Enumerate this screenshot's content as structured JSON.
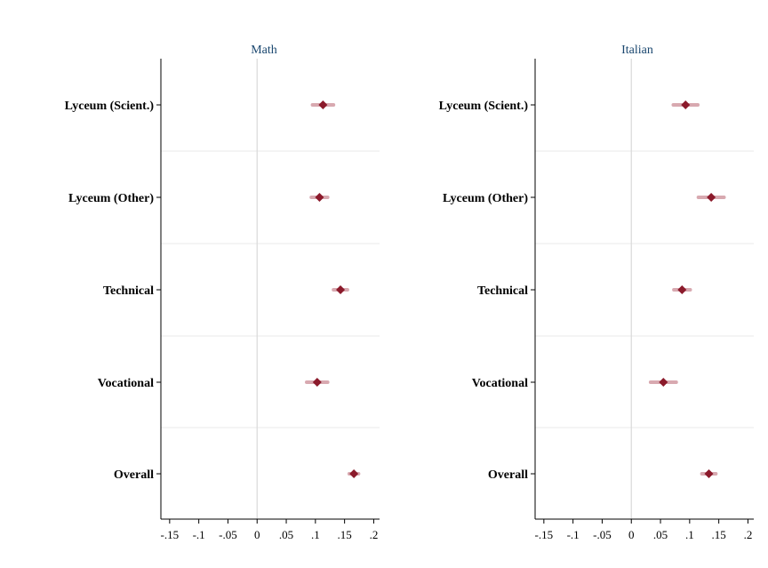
{
  "chart_data": [
    {
      "type": "scatter",
      "title": "Math",
      "categories": [
        "Lyceum (Scient.)",
        "Lyceum (Other)",
        "Technical",
        "Vocational",
        "Overall"
      ],
      "estimates": [
        0.113,
        0.107,
        0.143,
        0.103,
        0.166
      ],
      "ci_low": [
        0.095,
        0.093,
        0.131,
        0.085,
        0.158
      ],
      "ci_high": [
        0.131,
        0.121,
        0.155,
        0.121,
        0.174
      ],
      "xticks": [
        "-.15",
        "-.1",
        "-.05",
        "0",
        ".05",
        ".1",
        ".15",
        ".2"
      ],
      "xtick_values": [
        -0.15,
        -0.1,
        -0.05,
        0,
        0.05,
        0.1,
        0.15,
        0.2
      ],
      "xlim": [
        -0.165,
        0.21
      ],
      "reference_line": 0
    },
    {
      "type": "scatter",
      "title": "Italian",
      "categories": [
        "Lyceum (Scient.)",
        "Lyceum (Other)",
        "Technical",
        "Vocational",
        "Overall"
      ],
      "estimates": [
        0.093,
        0.137,
        0.087,
        0.055,
        0.133
      ],
      "ci_low": [
        0.072,
        0.115,
        0.073,
        0.033,
        0.121
      ],
      "ci_high": [
        0.114,
        0.159,
        0.101,
        0.077,
        0.145
      ],
      "xticks": [
        "-.15",
        "-.1",
        "-.05",
        "0",
        ".05",
        ".1",
        ".15",
        ".2"
      ],
      "xtick_values": [
        -0.15,
        -0.1,
        -0.05,
        0,
        0.05,
        0.1,
        0.15,
        0.2
      ],
      "xlim": [
        -0.165,
        0.21
      ],
      "reference_line": 0
    }
  ],
  "colors": {
    "marker": "#8b1a2b",
    "ci": "#d4a0a8",
    "reference_line": "#d9d9d9",
    "separator": "#eeeeee",
    "axis": "#000000",
    "title": "#1a476f"
  }
}
